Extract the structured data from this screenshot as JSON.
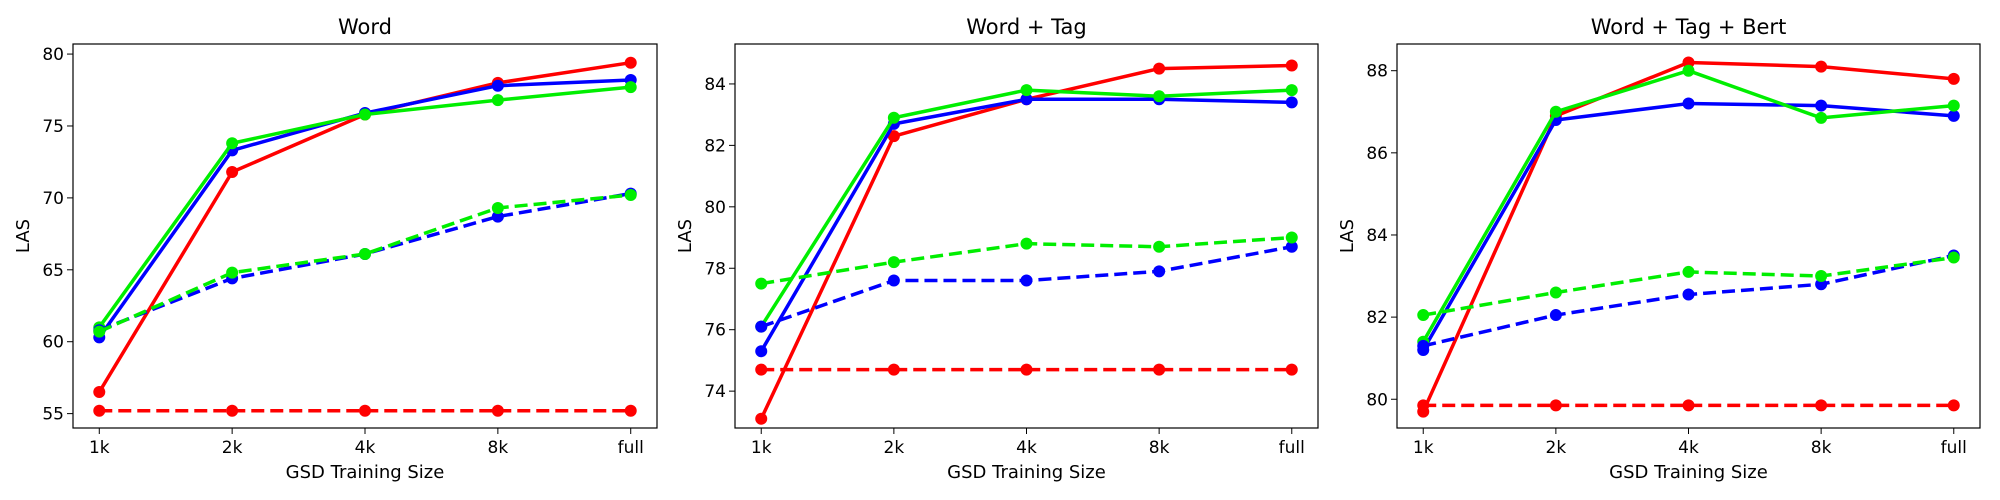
{
  "chart_data": [
    {
      "type": "line",
      "title": "Word",
      "xlabel": "GSD Training Size",
      "ylabel": "LAS",
      "categories": [
        "1k",
        "2k",
        "4k",
        "8k",
        "full"
      ],
      "ylim": [
        54.0,
        80.7
      ],
      "yticks": [
        55,
        60,
        65,
        70,
        75,
        80
      ],
      "series": [
        {
          "color": "#ff0000",
          "style": "solid",
          "values": [
            56.5,
            71.8,
            75.8,
            78.0,
            79.4
          ]
        },
        {
          "color": "#0000ff",
          "style": "solid",
          "values": [
            60.3,
            73.3,
            75.9,
            77.8,
            78.2
          ]
        },
        {
          "color": "#00ee00",
          "style": "solid",
          "values": [
            61.0,
            73.8,
            75.8,
            76.8,
            77.7
          ]
        },
        {
          "color": "#ff0000",
          "style": "dashed",
          "values": [
            55.2,
            55.2,
            55.2,
            55.2,
            55.2
          ]
        },
        {
          "color": "#0000ff",
          "style": "dashed",
          "values": [
            60.8,
            64.4,
            66.1,
            68.7,
            70.3
          ]
        },
        {
          "color": "#00ee00",
          "style": "dashed",
          "values": [
            60.7,
            64.8,
            66.1,
            69.3,
            70.2
          ]
        }
      ]
    },
    {
      "type": "line",
      "title": "Word + Tag",
      "xlabel": "GSD Training Size",
      "ylabel": "LAS",
      "categories": [
        "1k",
        "2k",
        "4k",
        "8k",
        "full"
      ],
      "ylim": [
        72.8,
        85.3
      ],
      "yticks": [
        74,
        76,
        78,
        80,
        82,
        84
      ],
      "series": [
        {
          "color": "#ff0000",
          "style": "solid",
          "values": [
            73.1,
            82.3,
            83.5,
            84.5,
            84.6
          ]
        },
        {
          "color": "#0000ff",
          "style": "solid",
          "values": [
            75.3,
            82.7,
            83.5,
            83.5,
            83.4
          ]
        },
        {
          "color": "#00ee00",
          "style": "solid",
          "values": [
            76.1,
            82.9,
            83.8,
            83.6,
            83.8
          ]
        },
        {
          "color": "#ff0000",
          "style": "dashed",
          "values": [
            74.7,
            74.7,
            74.7,
            74.7,
            74.7
          ]
        },
        {
          "color": "#0000ff",
          "style": "dashed",
          "values": [
            76.1,
            77.6,
            77.6,
            77.9,
            78.7
          ]
        },
        {
          "color": "#00ee00",
          "style": "dashed",
          "values": [
            77.5,
            78.2,
            78.8,
            78.7,
            79.0
          ]
        }
      ]
    },
    {
      "type": "line",
      "title": "Word + Tag + Bert",
      "xlabel": "GSD Training Size",
      "ylabel": "LAS",
      "categories": [
        "1k",
        "2k",
        "4k",
        "8k",
        "full"
      ],
      "ylim": [
        79.3,
        88.65
      ],
      "yticks": [
        80,
        82,
        84,
        86,
        88
      ],
      "series": [
        {
          "color": "#ff0000",
          "style": "solid",
          "values": [
            79.7,
            86.9,
            88.2,
            88.1,
            87.8
          ]
        },
        {
          "color": "#0000ff",
          "style": "solid",
          "values": [
            81.2,
            86.8,
            87.2,
            87.15,
            86.9
          ]
        },
        {
          "color": "#00ee00",
          "style": "solid",
          "values": [
            81.4,
            87.0,
            88.0,
            86.85,
            87.15
          ]
        },
        {
          "color": "#ff0000",
          "style": "dashed",
          "values": [
            79.85,
            79.85,
            79.85,
            79.85,
            79.85
          ]
        },
        {
          "color": "#0000ff",
          "style": "dashed",
          "values": [
            81.3,
            82.05,
            82.55,
            82.8,
            83.5
          ]
        },
        {
          "color": "#00ee00",
          "style": "dashed",
          "values": [
            82.05,
            82.6,
            83.1,
            83.0,
            83.45
          ]
        }
      ]
    }
  ]
}
